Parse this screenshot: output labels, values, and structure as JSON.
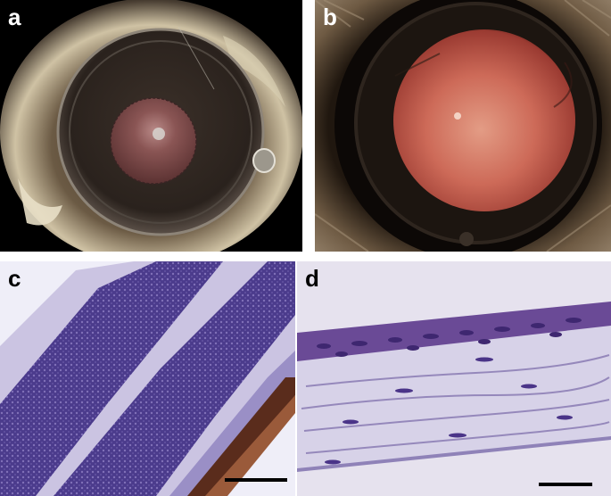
{
  "figure": {
    "panels": [
      {
        "id": "a",
        "label": "a",
        "label_color": "#ffffff"
      },
      {
        "id": "b",
        "label": "b",
        "label_color": "#ffffff"
      },
      {
        "id": "c",
        "label": "c",
        "label_color": "#000000"
      },
      {
        "id": "d",
        "label": "d",
        "label_color": "#000000"
      }
    ]
  },
  "colors": {
    "pupil_red": "#c0645a",
    "stain_purple": "#5a3f8c",
    "background_light": "#efeef8"
  }
}
